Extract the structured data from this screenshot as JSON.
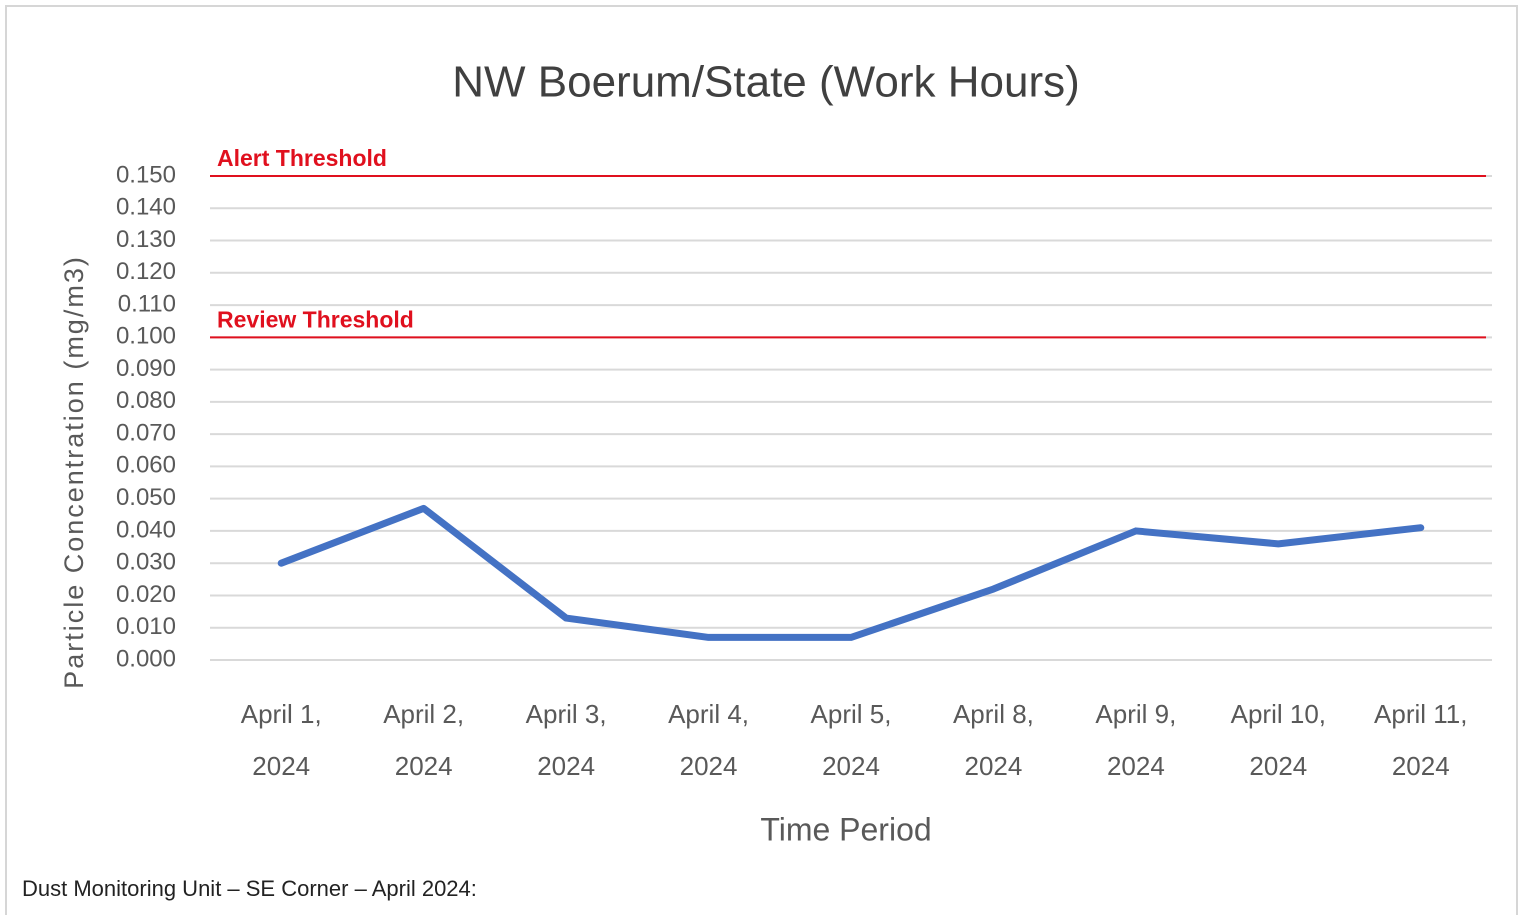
{
  "chart_data": {
    "type": "line",
    "title": "NW Boerum/State (Work Hours)",
    "x_label": "Time Period",
    "y_label": "Particle Concentration (mg/m3)",
    "categories": [
      "April 1, 2024",
      "April 2, 2024",
      "April 3, 2024",
      "April 4, 2024",
      "April 5, 2024",
      "April 8, 2024",
      "April 9, 2024",
      "April 10, 2024",
      "April 11, 2024"
    ],
    "series": [
      {
        "name": "NW Boerum/State",
        "color": "#4472c4",
        "values": [
          0.03,
          0.047,
          0.013,
          0.007,
          0.007,
          0.022,
          0.04,
          0.036,
          0.041
        ]
      }
    ],
    "ylim": [
      0,
      0.15
    ],
    "yticks": [
      {
        "value": 0,
        "label": "0.000"
      },
      {
        "value": 0.01,
        "label": "0.010"
      },
      {
        "value": 0.02,
        "label": "0.020"
      },
      {
        "value": 0.03,
        "label": "0.030"
      },
      {
        "value": 0.04,
        "label": "0.040"
      },
      {
        "value": 0.05,
        "label": "0.050"
      },
      {
        "value": 0.06,
        "label": "0.060"
      },
      {
        "value": 0.07,
        "label": "0.070"
      },
      {
        "value": 0.08,
        "label": "0.080"
      },
      {
        "value": 0.09,
        "label": "0.090"
      },
      {
        "value": 0.1,
        "label": "0.100"
      },
      {
        "value": 0.11,
        "label": "0.110"
      },
      {
        "value": 0.12,
        "label": "0.120"
      },
      {
        "value": 0.13,
        "label": "0.130"
      },
      {
        "value": 0.14,
        "label": "0.140"
      },
      {
        "value": 0.15,
        "label": "0.150"
      }
    ],
    "grid": true,
    "annotations": [
      {
        "label": "Alert Threshold",
        "value": 0.15,
        "color": "#e0101e"
      },
      {
        "label": "Review Threshold",
        "value": 0.1,
        "color": "#e0101e"
      }
    ]
  },
  "caption": "Dust Monitoring Unit – SE Corner – April 2024:"
}
